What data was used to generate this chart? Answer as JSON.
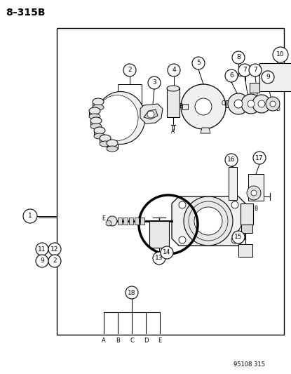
{
  "title": "8–315B",
  "bg_color": "#ffffff",
  "line_color": "#000000",
  "text_color": "#000000",
  "footer_text": "95108 315",
  "border": [
    0.195,
    0.075,
    0.975,
    0.895
  ],
  "fig_w": 4.15,
  "fig_h": 5.33,
  "dpi": 100
}
